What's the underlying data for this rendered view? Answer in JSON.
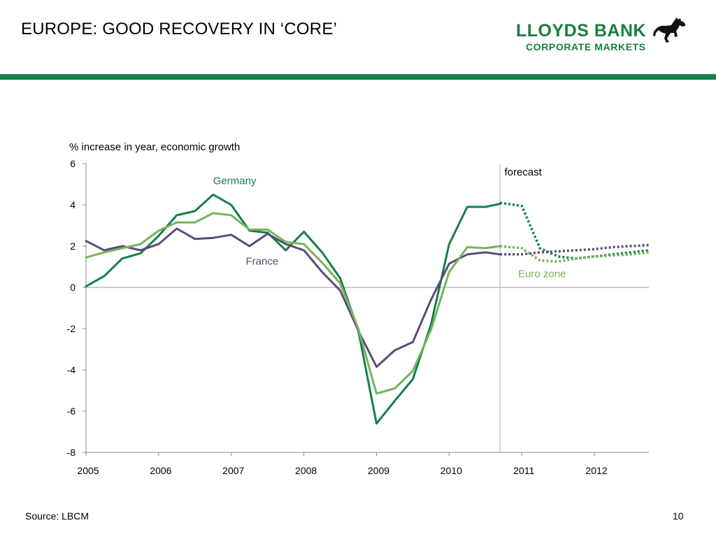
{
  "slide": {
    "title": "EUROPE: GOOD RECOVERY IN ‘CORE’",
    "source": "Source: LBCM",
    "page_number": "10"
  },
  "logo": {
    "line1": "LLOYDS BANK",
    "line2": "CORPORATE MARKETS",
    "icon": "black-horse-icon",
    "color": "#1a7d45"
  },
  "chart_data": {
    "type": "line",
    "ylabel": "% increase in year, economic growth",
    "xlabel": "",
    "ylim": [
      -8,
      6
    ],
    "xlim": [
      2005,
      2012.75
    ],
    "yticks": [
      6,
      4,
      2,
      0,
      -2,
      -4,
      -6,
      -8
    ],
    "xticks": [
      2005,
      2006,
      2007,
      2008,
      2009,
      2010,
      2011,
      2012
    ],
    "forecast_start": 2010.7,
    "annotations": [
      {
        "text": "forecast",
        "x": 2010.8,
        "y": 5.6
      }
    ],
    "series": [
      {
        "name": "Germany",
        "color": "#128048",
        "label_pos": {
          "x": 2006.75,
          "y": 5.0
        },
        "actual": [
          [
            2005.0,
            0.05
          ],
          [
            2005.25,
            0.55
          ],
          [
            2005.5,
            1.4
          ],
          [
            2005.75,
            1.65
          ],
          [
            2006.0,
            2.5
          ],
          [
            2006.25,
            3.5
          ],
          [
            2006.5,
            3.7
          ],
          [
            2006.75,
            4.5
          ],
          [
            2007.0,
            4.0
          ],
          [
            2007.25,
            2.75
          ],
          [
            2007.5,
            2.65
          ],
          [
            2007.75,
            1.8
          ],
          [
            2008.0,
            2.7
          ],
          [
            2008.25,
            1.7
          ],
          [
            2008.5,
            0.45
          ],
          [
            2008.75,
            -2.1
          ],
          [
            2009.0,
            -6.6
          ],
          [
            2009.25,
            -5.5
          ],
          [
            2009.5,
            -4.45
          ],
          [
            2009.75,
            -1.8
          ],
          [
            2010.0,
            2.1
          ],
          [
            2010.25,
            3.9
          ],
          [
            2010.5,
            3.9
          ],
          [
            2010.7,
            4.05
          ]
        ],
        "forecast": [
          [
            2010.7,
            4.1
          ],
          [
            2011.0,
            3.95
          ],
          [
            2011.25,
            1.9
          ],
          [
            2011.5,
            1.5
          ],
          [
            2011.75,
            1.4
          ],
          [
            2012.0,
            1.5
          ],
          [
            2012.25,
            1.6
          ],
          [
            2012.5,
            1.7
          ],
          [
            2012.75,
            1.8
          ]
        ]
      },
      {
        "name": "France",
        "color": "#5c4a7c",
        "label_pos": {
          "x": 2007.2,
          "y": 1.1
        },
        "actual": [
          [
            2005.0,
            2.25
          ],
          [
            2005.25,
            1.8
          ],
          [
            2005.5,
            2.0
          ],
          [
            2005.75,
            1.8
          ],
          [
            2006.0,
            2.1
          ],
          [
            2006.25,
            2.85
          ],
          [
            2006.5,
            2.35
          ],
          [
            2006.75,
            2.4
          ],
          [
            2007.0,
            2.55
          ],
          [
            2007.25,
            2.0
          ],
          [
            2007.5,
            2.6
          ],
          [
            2007.75,
            2.1
          ],
          [
            2008.0,
            1.8
          ],
          [
            2008.25,
            0.75
          ],
          [
            2008.5,
            -0.15
          ],
          [
            2008.75,
            -2.1
          ],
          [
            2009.0,
            -3.85
          ],
          [
            2009.25,
            -3.05
          ],
          [
            2009.5,
            -2.65
          ],
          [
            2009.75,
            -0.6
          ],
          [
            2010.0,
            1.15
          ],
          [
            2010.25,
            1.6
          ],
          [
            2010.5,
            1.7
          ],
          [
            2010.7,
            1.6
          ]
        ],
        "forecast": [
          [
            2010.7,
            1.6
          ],
          [
            2011.0,
            1.6
          ],
          [
            2011.25,
            1.7
          ],
          [
            2011.5,
            1.75
          ],
          [
            2011.75,
            1.8
          ],
          [
            2012.0,
            1.85
          ],
          [
            2012.25,
            1.95
          ],
          [
            2012.5,
            2.0
          ],
          [
            2012.75,
            2.05
          ]
        ]
      },
      {
        "name": "Euro zone",
        "color": "#76b35a",
        "label_pos": {
          "x": 2010.95,
          "y": 0.5
        },
        "actual": [
          [
            2005.0,
            1.45
          ],
          [
            2005.25,
            1.7
          ],
          [
            2005.5,
            1.9
          ],
          [
            2005.75,
            2.1
          ],
          [
            2006.0,
            2.75
          ],
          [
            2006.25,
            3.15
          ],
          [
            2006.5,
            3.15
          ],
          [
            2006.75,
            3.6
          ],
          [
            2007.0,
            3.5
          ],
          [
            2007.25,
            2.8
          ],
          [
            2007.5,
            2.8
          ],
          [
            2007.75,
            2.2
          ],
          [
            2008.0,
            2.1
          ],
          [
            2008.25,
            1.2
          ],
          [
            2008.5,
            0.2
          ],
          [
            2008.75,
            -2.0
          ],
          [
            2009.0,
            -5.15
          ],
          [
            2009.25,
            -4.9
          ],
          [
            2009.5,
            -4.05
          ],
          [
            2009.75,
            -2.05
          ],
          [
            2010.0,
            0.75
          ],
          [
            2010.25,
            1.95
          ],
          [
            2010.5,
            1.9
          ],
          [
            2010.7,
            2.0
          ]
        ],
        "forecast": [
          [
            2010.7,
            2.0
          ],
          [
            2011.0,
            1.9
          ],
          [
            2011.25,
            1.3
          ],
          [
            2011.5,
            1.25
          ],
          [
            2011.75,
            1.4
          ],
          [
            2012.0,
            1.5
          ],
          [
            2012.25,
            1.55
          ],
          [
            2012.5,
            1.6
          ],
          [
            2012.75,
            1.7
          ]
        ]
      }
    ]
  }
}
